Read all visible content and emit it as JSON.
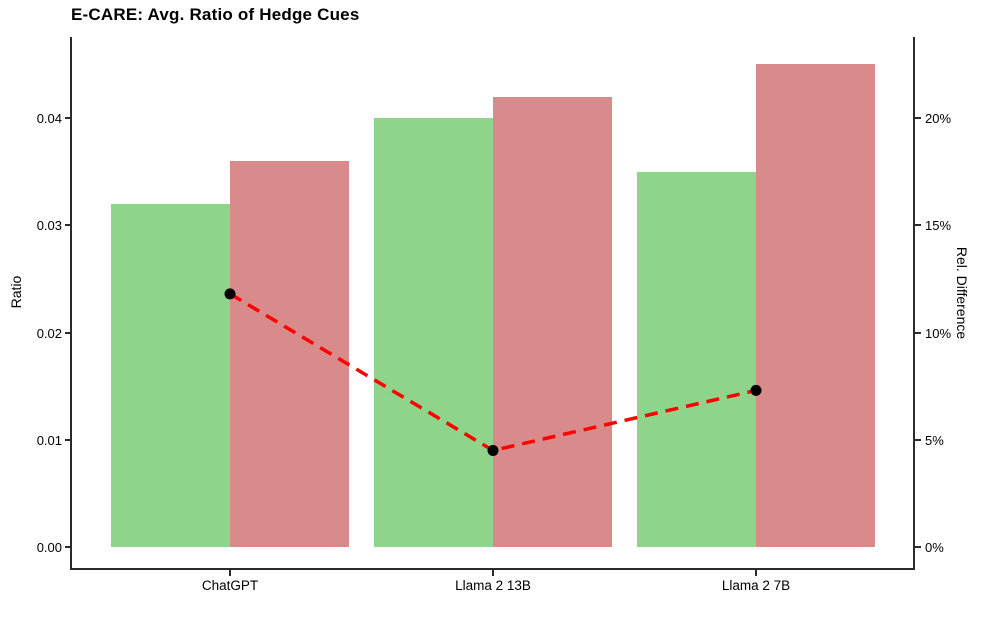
{
  "chart_data": {
    "type": "grouped-bar-with-line-dual-axis",
    "title": "E-CARE: Avg. Ratio of Hedge Cues",
    "categories": [
      "ChatGPT",
      "Llama 2 13B",
      "Llama 2 7B"
    ],
    "series": [
      {
        "name": "green-bars",
        "color": "#8fd48b",
        "axis": "left",
        "values": [
          0.032,
          0.04,
          0.035
        ]
      },
      {
        "name": "red-bars",
        "color": "#d98a8a",
        "axis": "left",
        "values": [
          0.036,
          0.042,
          0.045
        ]
      }
    ],
    "line": {
      "name": "rel-difference-line",
      "axis": "right",
      "values_percent": [
        11.8,
        4.5,
        7.3
      ],
      "color": "#ff0000",
      "style": "dashed",
      "marker": "circle",
      "marker_color": "#000000"
    },
    "axes": {
      "left": {
        "label": "Ratio",
        "tick_labels": [
          "0.00",
          "0.01",
          "0.02",
          "0.03",
          "0.04"
        ],
        "tick_values": [
          0,
          0.01,
          0.02,
          0.03,
          0.04
        ],
        "range": [
          0,
          0.0476
        ]
      },
      "right": {
        "label": "Rel. Difference",
        "tick_labels": [
          "0%",
          "5%",
          "10%",
          "15%",
          "20%"
        ],
        "tick_values": [
          0,
          5,
          10,
          15,
          20
        ],
        "range": [
          0,
          23.8
        ]
      },
      "x": {
        "tick_labels": [
          "ChatGPT",
          "Llama 2 13B",
          "Llama 2 7B"
        ]
      }
    },
    "grid": false,
    "legend": false,
    "colors": {
      "axis": "#2b2b2b",
      "text": "#000000",
      "background": "#ffffff"
    }
  }
}
